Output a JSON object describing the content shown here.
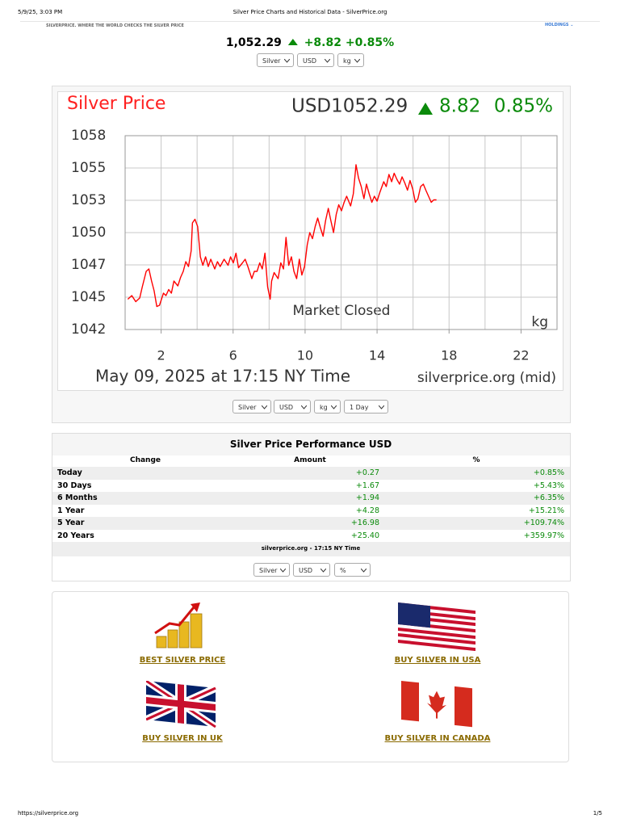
{
  "print_header": {
    "datetime": "5/9/25, 3:03 PM",
    "title": "Silver Price Charts and Historical Data - SilverPrice.org"
  },
  "site_bar": {
    "tagline": "SILVERPRICE. WHERE THE WORLD CHECKS THE SILVER PRICE",
    "menu": "HOLDINGS"
  },
  "ticker": {
    "price": "1,052.29",
    "change": "+8.82",
    "percent": "+0.85%",
    "selects": [
      "Silver",
      "USD",
      "kg"
    ]
  },
  "chart_data": {
    "type": "line",
    "title": "Silver Price",
    "price_label": "USD1052.29",
    "change": "8.82",
    "change_percent": "0.85%",
    "annotation": "Market Closed",
    "unit": "kg",
    "caption": "May 09, 2025 at 17:15 NY Time",
    "source": "silverprice.org (mid)",
    "color": "#ff0000",
    "grid": true,
    "xlim": [
      0,
      24
    ],
    "xticks": [
      2,
      6,
      10,
      14,
      18,
      22
    ],
    "xgrid": [
      2,
      4,
      6,
      8,
      10,
      12,
      14,
      16,
      18,
      20,
      22
    ],
    "ylim": [
      1042,
      1058
    ],
    "yticks": [
      1042,
      {
        "value": 1044.67,
        "label": "1045"
      },
      {
        "value": 1047.33,
        "label": "1047"
      },
      1050,
      {
        "value": 1052.67,
        "label": "1053"
      },
      {
        "value": 1055.33,
        "label": "1055"
      },
      1058
    ],
    "x": [
      0.15,
      0.37,
      0.59,
      0.81,
      0.95,
      1.17,
      1.32,
      1.47,
      1.61,
      1.76,
      1.91,
      2.13,
      2.27,
      2.42,
      2.57,
      2.71,
      2.93,
      3.08,
      3.23,
      3.37,
      3.52,
      3.67,
      3.74,
      3.88,
      4.03,
      4.18,
      4.32,
      4.47,
      4.62,
      4.76,
      4.98,
      5.13,
      5.28,
      5.5,
      5.72,
      5.86,
      6.01,
      6.16,
      6.3,
      6.52,
      6.67,
      6.82,
      7.04,
      7.18,
      7.33,
      7.48,
      7.62,
      7.77,
      7.92,
      8.06,
      8.14,
      8.28,
      8.5,
      8.65,
      8.8,
      8.94,
      9.09,
      9.24,
      9.38,
      9.53,
      9.68,
      9.82,
      9.97,
      10.12,
      10.26,
      10.41,
      10.56,
      10.7,
      10.85,
      11.0,
      11.14,
      11.29,
      11.43,
      11.58,
      11.73,
      11.87,
      12.02,
      12.17,
      12.31,
      12.53,
      12.68,
      12.83,
      12.97,
      13.12,
      13.27,
      13.41,
      13.56,
      13.71,
      13.85,
      14.0,
      14.15,
      14.37,
      14.51,
      14.66,
      14.81,
      14.95,
      15.1,
      15.25,
      15.39,
      15.54,
      15.69,
      15.83,
      15.98,
      16.13,
      16.27,
      16.42,
      16.57,
      16.71,
      16.86,
      17.01,
      17.15,
      17.3
    ],
    "values": [
      1044.5,
      1044.8,
      1044.3,
      1044.6,
      1045.5,
      1046.8,
      1047.0,
      1046.0,
      1045.2,
      1043.9,
      1044.0,
      1045.0,
      1044.8,
      1045.3,
      1045.0,
      1046.0,
      1045.6,
      1046.3,
      1046.8,
      1047.6,
      1047.2,
      1048.5,
      1050.8,
      1051.1,
      1050.5,
      1048.0,
      1047.3,
      1048.0,
      1047.2,
      1047.8,
      1047.0,
      1047.6,
      1047.2,
      1047.8,
      1047.3,
      1048.0,
      1047.5,
      1048.3,
      1047.1,
      1047.5,
      1047.8,
      1047.2,
      1046.2,
      1046.8,
      1046.8,
      1047.5,
      1047.0,
      1048.3,
      1045.5,
      1044.5,
      1046.0,
      1046.7,
      1046.2,
      1047.5,
      1047.0,
      1049.6,
      1047.3,
      1048.0,
      1046.8,
      1046.2,
      1047.8,
      1046.5,
      1047.2,
      1049.0,
      1050.0,
      1049.5,
      1050.5,
      1051.2,
      1050.4,
      1049.7,
      1051.0,
      1052.0,
      1051.0,
      1050.0,
      1051.5,
      1052.3,
      1051.8,
      1052.5,
      1053.0,
      1052.2,
      1053.2,
      1055.6,
      1054.5,
      1053.8,
      1052.8,
      1054.0,
      1053.2,
      1052.5,
      1053.0,
      1052.6,
      1053.3,
      1054.2,
      1053.8,
      1054.8,
      1054.2,
      1054.9,
      1054.4,
      1054.0,
      1054.6,
      1054.1,
      1053.5,
      1054.3,
      1053.6,
      1052.5,
      1052.8,
      1053.8,
      1054.0,
      1053.5,
      1053.0,
      1052.5,
      1052.7,
      1052.7
    ]
  },
  "chart_controls": [
    "Silver",
    "USD",
    "kg",
    "1 Day"
  ],
  "performance": {
    "title": "Silver Price Performance USD",
    "columns": [
      "Change",
      "Amount",
      "%"
    ],
    "rows": [
      [
        "Today",
        "+0.27",
        "+0.85%"
      ],
      [
        "30 Days",
        "+1.67",
        "+5.43%"
      ],
      [
        "6 Months",
        "+1.94",
        "+6.35%"
      ],
      [
        "1 Year",
        "+4.28",
        "+15.21%"
      ],
      [
        "5 Year",
        "+16.98",
        "+109.74%"
      ],
      [
        "20 Years",
        "+25.40",
        "+359.97%"
      ]
    ],
    "footer": "silverprice.org - 17:15 NY Time",
    "selects": [
      "Silver",
      "USD",
      "%"
    ]
  },
  "links": [
    "BEST SILVER PRICE",
    "BUY SILVER IN USA",
    "BUY SILVER IN UK",
    "BUY SILVER IN CANADA"
  ],
  "print_footer": {
    "url": "https://silverprice.org",
    "page": "1/5"
  }
}
